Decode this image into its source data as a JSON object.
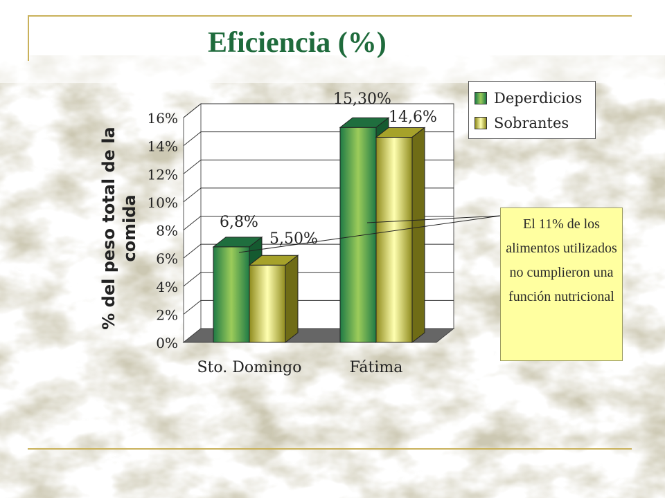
{
  "slide": {
    "title": "Eficiencia (%)"
  },
  "callout": {
    "text": "El 11% de los alimentos utilizados no cumplieron una función nutricional"
  },
  "colors": {
    "title": "#1f6b3c",
    "series1": "#2f9a55",
    "series2": "#d6d448",
    "floor": "#666666",
    "callout_bg": "#ffffa0",
    "decor": "#c9b15a"
  },
  "chart_data": {
    "type": "bar",
    "title": "",
    "xlabel": "",
    "ylabel": "% del peso total de la comida",
    "categories": [
      "Sto. Domingo",
      "Fátima"
    ],
    "series": [
      {
        "name": "Deperdicios",
        "values": [
          6.8,
          15.3
        ],
        "labels": [
          "6,8%",
          "15,30%"
        ]
      },
      {
        "name": "Sobrantes",
        "values": [
          5.5,
          14.6
        ],
        "labels": [
          "5,50%",
          "14,6%"
        ]
      }
    ],
    "yticks": [
      "0%",
      "2%",
      "4%",
      "6%",
      "8%",
      "10%",
      "12%",
      "14%",
      "16%"
    ],
    "ylim": [
      0,
      16
    ],
    "legend": "top-right",
    "grid": true
  }
}
